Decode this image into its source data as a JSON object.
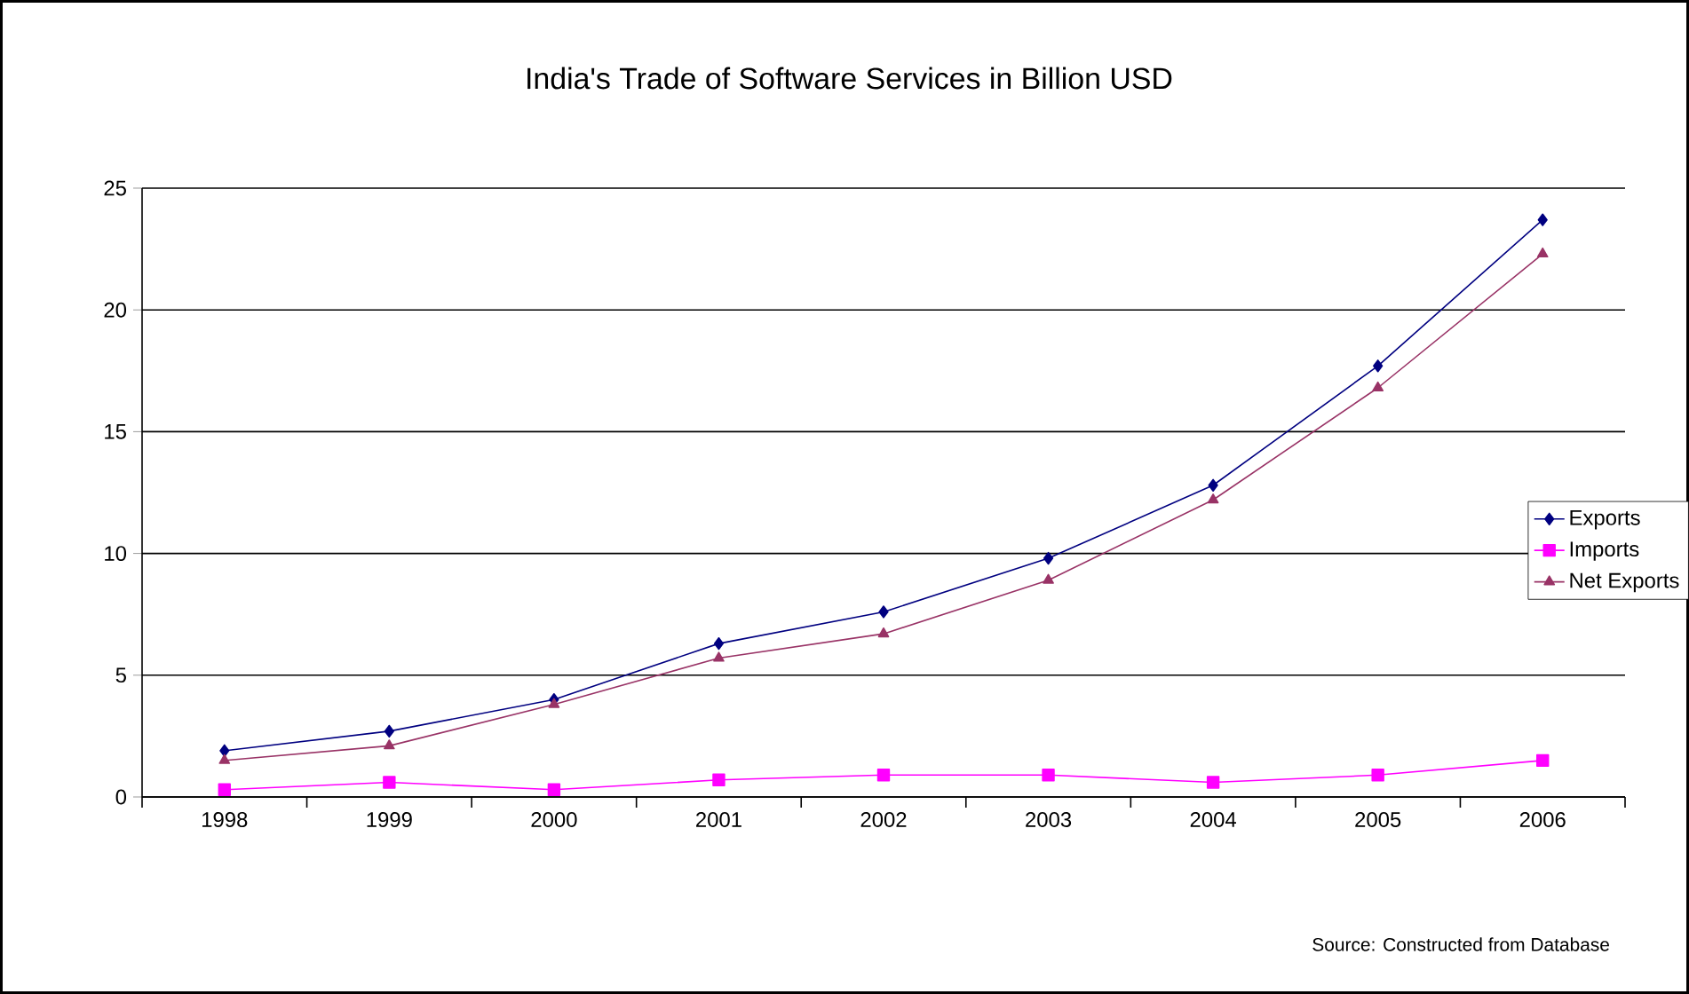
{
  "chart_data": {
    "type": "line",
    "title": "India's Trade of Software Services in Billion USD",
    "categories": [
      "1998",
      "1999",
      "2000",
      "2001",
      "2002",
      "2003",
      "2004",
      "2005",
      "2006"
    ],
    "series": [
      {
        "name": "Exports",
        "color": "#000080",
        "marker": "diamond",
        "values": [
          1.9,
          2.7,
          4.0,
          6.3,
          7.6,
          9.8,
          12.8,
          17.7,
          23.7
        ]
      },
      {
        "name": "Imports",
        "color": "#ff00ff",
        "marker": "square",
        "values": [
          0.3,
          0.6,
          0.3,
          0.7,
          0.9,
          0.9,
          0.6,
          0.9,
          1.5
        ]
      },
      {
        "name": "Net Exports",
        "color": "#993366",
        "marker": "triangle",
        "values": [
          1.5,
          2.1,
          3.8,
          5.7,
          6.7,
          8.9,
          12.2,
          16.8,
          22.3
        ]
      }
    ],
    "ylim": [
      0,
      25
    ],
    "yticks": [
      0,
      5,
      10,
      15,
      20,
      25
    ],
    "grid": "y",
    "legend": "right",
    "line_style": "solid",
    "annotations": [
      "Source: Constructed from Database"
    ]
  }
}
